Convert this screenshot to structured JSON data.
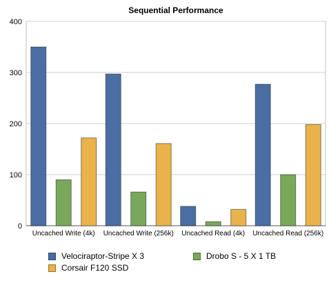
{
  "chart_data": {
    "type": "bar",
    "title": "Sequential Performance",
    "xlabel": "",
    "ylabel": "",
    "ylim": [
      0,
      400
    ],
    "yticks": [
      0,
      100,
      200,
      300,
      400
    ],
    "grid": true,
    "legend_position": "bottom",
    "categories": [
      "Uncached Write (4k)",
      "Uncached Write (256k)",
      "Uncached Read (4k)",
      "Uncached Read (256k)"
    ],
    "series": [
      {
        "name": "Velociraptor-Stripe X 3",
        "color": "#4a6ea3",
        "values": [
          350,
          297,
          38,
          277
        ]
      },
      {
        "name": "Drobo S - 5 X 1 TB",
        "color": "#79a85a",
        "values": [
          90,
          66,
          8,
          100
        ]
      },
      {
        "name": "Corsair F120 SSD",
        "color": "#eab24a",
        "values": [
          172,
          161,
          32,
          198
        ]
      }
    ]
  }
}
